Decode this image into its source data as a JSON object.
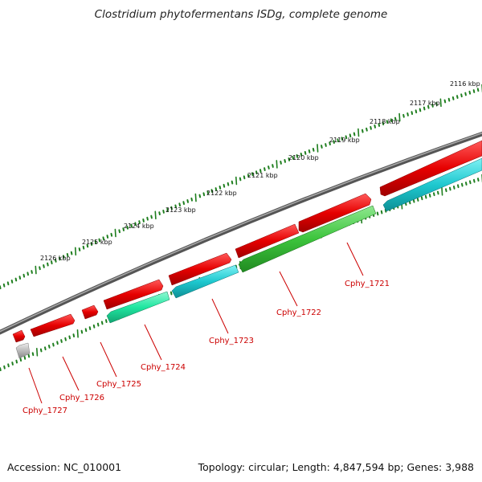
{
  "title": "Clostridium phytofermentans ISDg, complete genome",
  "footer": {
    "accession": "Accession: NC_010001",
    "summary": "Topology: circular; Length: 4,847,594 bp; Genes: 3,988"
  },
  "colors": {
    "backbone": "#777777",
    "forward_gene": "#e60000",
    "reverse_cyan": "#1ec8cf",
    "reverse_green": "#3cc43c",
    "reverse_mint": "#1fe6a0",
    "pseudo_gray": "#bbbbbb",
    "tick": "#1e7e1e",
    "label": "#cc0000"
  },
  "scale_labels": [
    "2116 kbp",
    "2117 kbp",
    "2118 kbp",
    "2119 kbp",
    "2120 kbp",
    "2121 kbp",
    "2122 kbp",
    "2123 kbp",
    "2124 kbp",
    "2125 kbp",
    "2126 kbp"
  ],
  "genes": [
    {
      "label": "Cphy_1721",
      "strand": "forward"
    },
    {
      "label": "Cphy_1722",
      "strand": "reverse"
    },
    {
      "label": "Cphy_1723",
      "strand": "reverse"
    },
    {
      "label": "Cphy_1724",
      "strand": "reverse"
    },
    {
      "label": "Cphy_1725",
      "strand": "forward"
    },
    {
      "label": "Cphy_1726",
      "strand": "forward"
    },
    {
      "label": "Cphy_1727",
      "strand": "forward"
    }
  ]
}
